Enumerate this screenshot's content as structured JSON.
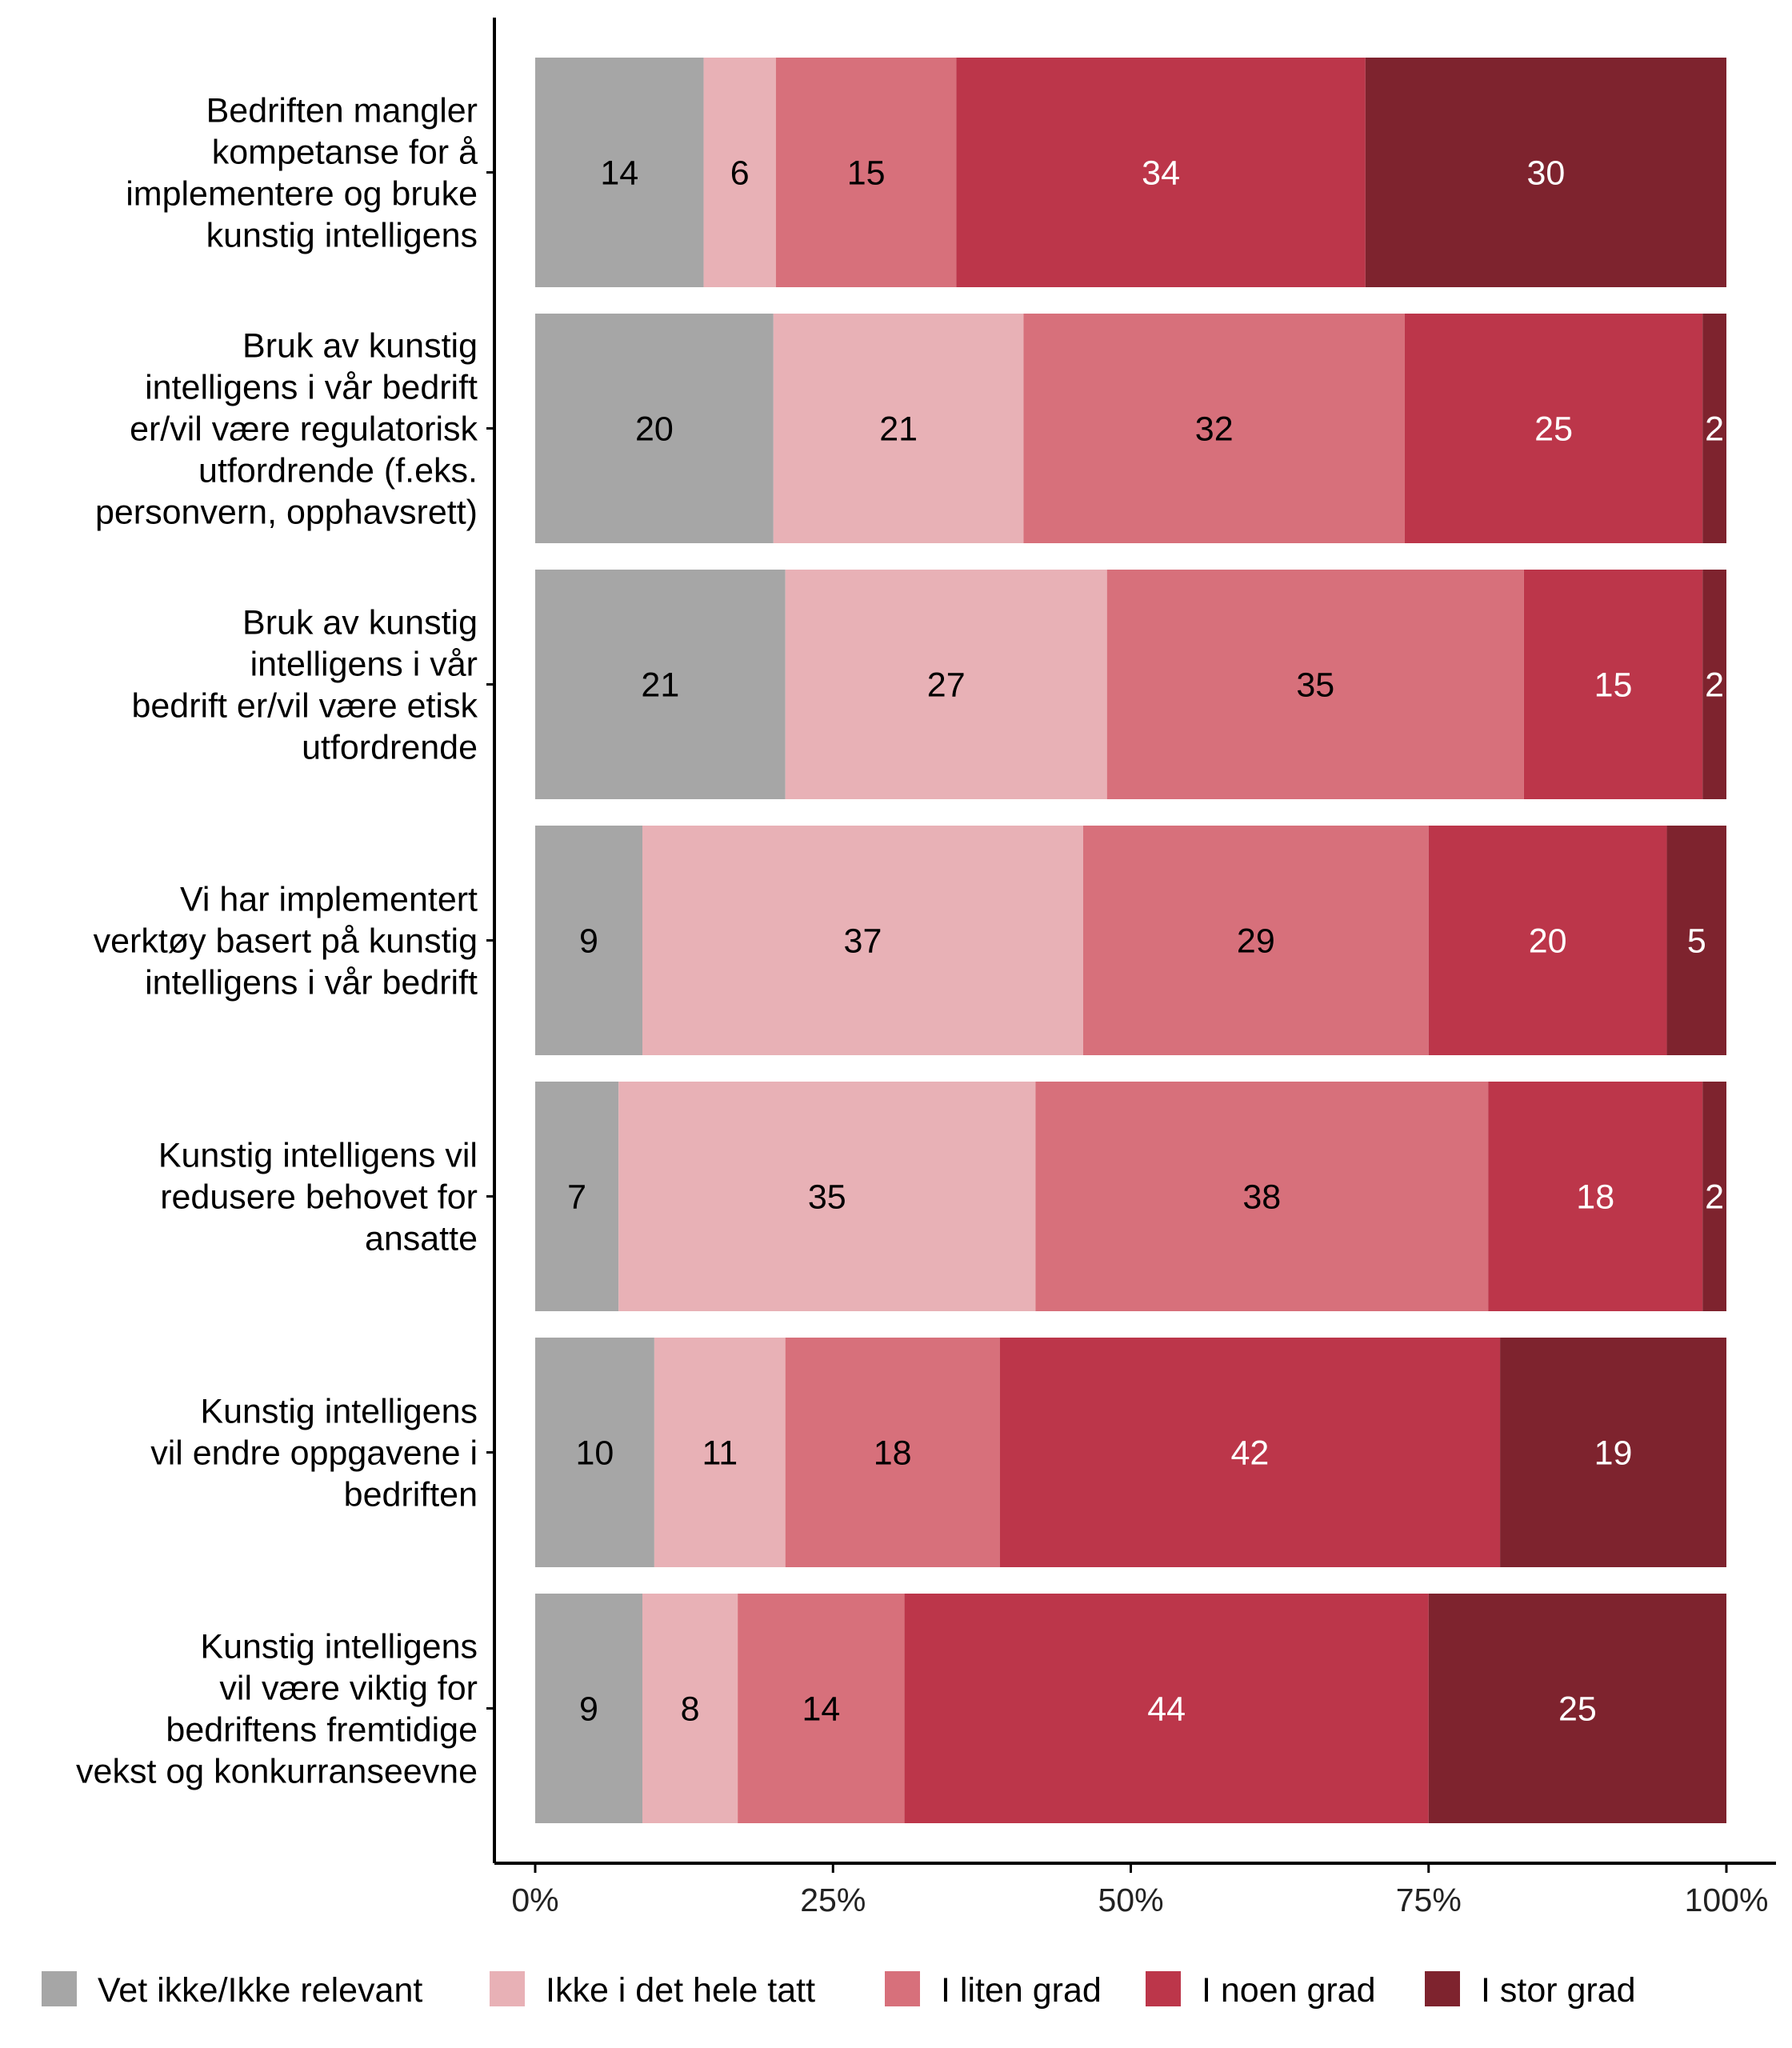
{
  "chart_data": {
    "type": "bar",
    "orientation": "horizontal",
    "stacked": true,
    "percent_scale": true,
    "xlim": [
      0,
      100
    ],
    "x_ticks": [
      "0%",
      "25%",
      "50%",
      "75%",
      "100%"
    ],
    "grid": false,
    "legend_position": "bottom",
    "categories": [
      "Bedriften mangler kompetanse for å implementere og bruke kunstig intelligens",
      "Bruk av kunstig intelligens i vår bedrift er/vil være regulatorisk utfordrende (f.eks. personvern, opphavsrett)",
      "Bruk av kunstig intelligens i vår bedrift er/vil være etisk utfordrende",
      "Vi har implementert verktøy basert på kunstig intelligens i vår bedrift",
      "Kunstig intelligens vil redusere behovet for ansatte",
      "Kunstig intelligens vil endre oppgavene i bedriften",
      "Kunstig intelligens vil være viktig for bedriftens fremtidige vekst og konkurranseevne"
    ],
    "category_lines": [
      [
        "Bedriften mangler",
        "kompetanse for å",
        "implementere og bruke",
        "kunstig intelligens"
      ],
      [
        "Bruk av kunstig",
        "intelligens i vår bedrift",
        "er/vil være regulatorisk",
        "utfordrende (f.eks.",
        "personvern, opphavsrett)"
      ],
      [
        "Bruk av kunstig",
        "intelligens i vår",
        "bedrift er/vil være etisk",
        "utfordrende"
      ],
      [
        "Vi har implementert",
        "verktøy basert på kunstig",
        "intelligens i vår bedrift"
      ],
      [
        "Kunstig intelligens vil",
        "redusere behovet for",
        "ansatte"
      ],
      [
        "Kunstig intelligens",
        "vil endre oppgavene i",
        "bedriften"
      ],
      [
        "Kunstig intelligens",
        "vil være viktig for",
        "bedriftens fremtidige",
        "vekst og konkurranseevne"
      ]
    ],
    "series": [
      {
        "name": "Vet ikke/Ikke relevant",
        "color": "#a6a6a6",
        "label_color": "#000000",
        "values": [
          14,
          20,
          21,
          9,
          7,
          10,
          9
        ]
      },
      {
        "name": "Ikke i det hele tatt",
        "color": "#e8b1b6",
        "label_color": "#000000",
        "values": [
          6,
          21,
          27,
          37,
          35,
          11,
          8
        ]
      },
      {
        "name": "I liten grad",
        "color": "#d7707b",
        "label_color": "#000000",
        "values": [
          15,
          32,
          35,
          29,
          38,
          18,
          14
        ]
      },
      {
        "name": "I noen grad",
        "color": "#bc364a",
        "label_color": "#ffffff",
        "values": [
          34,
          25,
          15,
          20,
          18,
          42,
          44
        ]
      },
      {
        "name": "I stor grad",
        "color": "#7e232e",
        "label_color": "#ffffff",
        "values": [
          30,
          2,
          2,
          5,
          2,
          19,
          25
        ]
      }
    ]
  }
}
